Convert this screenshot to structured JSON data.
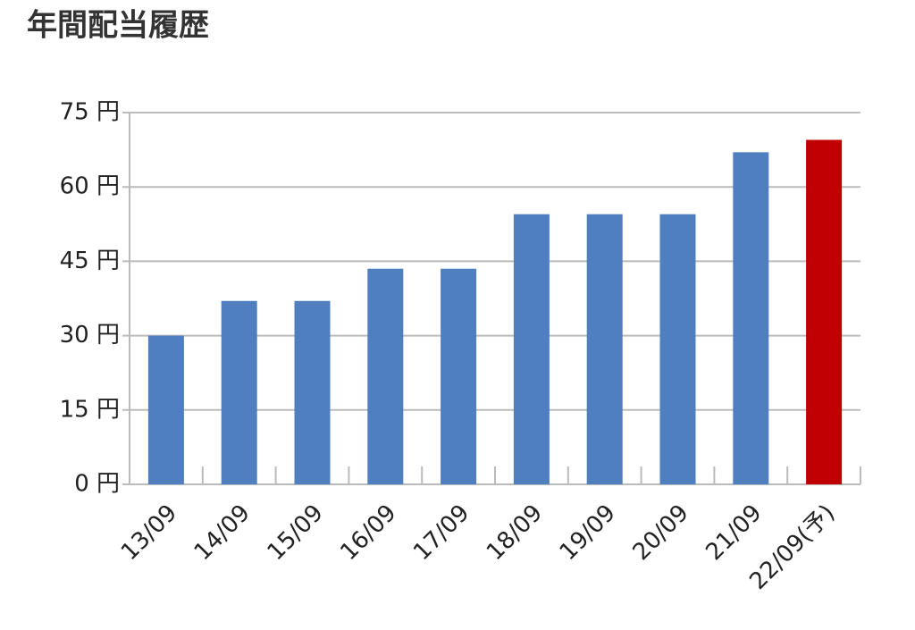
{
  "chart_data": {
    "type": "bar",
    "title": "年間配当履歴",
    "categories": [
      "13/09",
      "14/09",
      "15/09",
      "16/09",
      "17/09",
      "18/09",
      "19/09",
      "20/09",
      "21/09",
      "22/09(予)"
    ],
    "values": [
      30,
      37,
      37,
      43.5,
      43.5,
      54.5,
      54.5,
      54.5,
      67,
      69.5
    ],
    "colors": [
      "#4f7fbf",
      "#4f7fbf",
      "#4f7fbf",
      "#4f7fbf",
      "#4f7fbf",
      "#4f7fbf",
      "#4f7fbf",
      "#4f7fbf",
      "#4f7fbf",
      "#c00000"
    ],
    "ylim": [
      0,
      75
    ],
    "yticks": [
      {
        "value": 0,
        "label": "0 円"
      },
      {
        "value": 15,
        "label": "15 円"
      },
      {
        "value": 30,
        "label": "30 円"
      },
      {
        "value": 45,
        "label": "45 円"
      },
      {
        "value": 60,
        "label": "60 円"
      },
      {
        "value": 75,
        "label": "75 円"
      }
    ],
    "grid": true
  }
}
